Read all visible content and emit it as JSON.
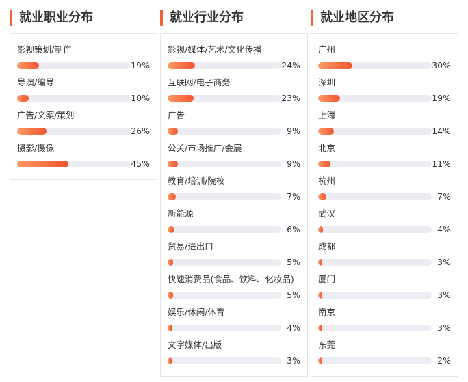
{
  "accent_color": "#f4623a",
  "panels": [
    {
      "title": "就业职业分布",
      "items": [
        {
          "label": "影视策划/制作",
          "value": 19,
          "pct": "19%"
        },
        {
          "label": "导演/编导",
          "value": 10,
          "pct": "10%"
        },
        {
          "label": "广告/文案/策划",
          "value": 26,
          "pct": "26%"
        },
        {
          "label": "摄影/摄像",
          "value": 45,
          "pct": "45%"
        }
      ]
    },
    {
      "title": "就业行业分布",
      "items": [
        {
          "label": "影视/媒体/艺术/文化传播",
          "value": 24,
          "pct": "24%"
        },
        {
          "label": "互联网/电子商务",
          "value": 23,
          "pct": "23%"
        },
        {
          "label": "广告",
          "value": 9,
          "pct": "9%"
        },
        {
          "label": "公关/市场推广/会展",
          "value": 9,
          "pct": "9%"
        },
        {
          "label": "教育/培训/院校",
          "value": 7,
          "pct": "7%"
        },
        {
          "label": "新能源",
          "value": 6,
          "pct": "6%"
        },
        {
          "label": "贸易/进出口",
          "value": 5,
          "pct": "5%"
        },
        {
          "label": "快速消费品(食品、饮料、化妆品)",
          "value": 5,
          "pct": "5%"
        },
        {
          "label": "娱乐/休闲/体育",
          "value": 4,
          "pct": "4%"
        },
        {
          "label": "文字媒体/出版",
          "value": 3,
          "pct": "3%"
        }
      ]
    },
    {
      "title": "就业地区分布",
      "items": [
        {
          "label": "广州",
          "value": 30,
          "pct": "30%"
        },
        {
          "label": "深圳",
          "value": 19,
          "pct": "19%"
        },
        {
          "label": "上海",
          "value": 14,
          "pct": "14%"
        },
        {
          "label": "北京",
          "value": 11,
          "pct": "11%"
        },
        {
          "label": "杭州",
          "value": 7,
          "pct": "7%"
        },
        {
          "label": "武汉",
          "value": 4,
          "pct": "4%"
        },
        {
          "label": "成都",
          "value": 3,
          "pct": "3%"
        },
        {
          "label": "厦门",
          "value": 3,
          "pct": "3%"
        },
        {
          "label": "南京",
          "value": 3,
          "pct": "3%"
        },
        {
          "label": "东莞",
          "value": 2,
          "pct": "2%"
        }
      ]
    }
  ]
}
